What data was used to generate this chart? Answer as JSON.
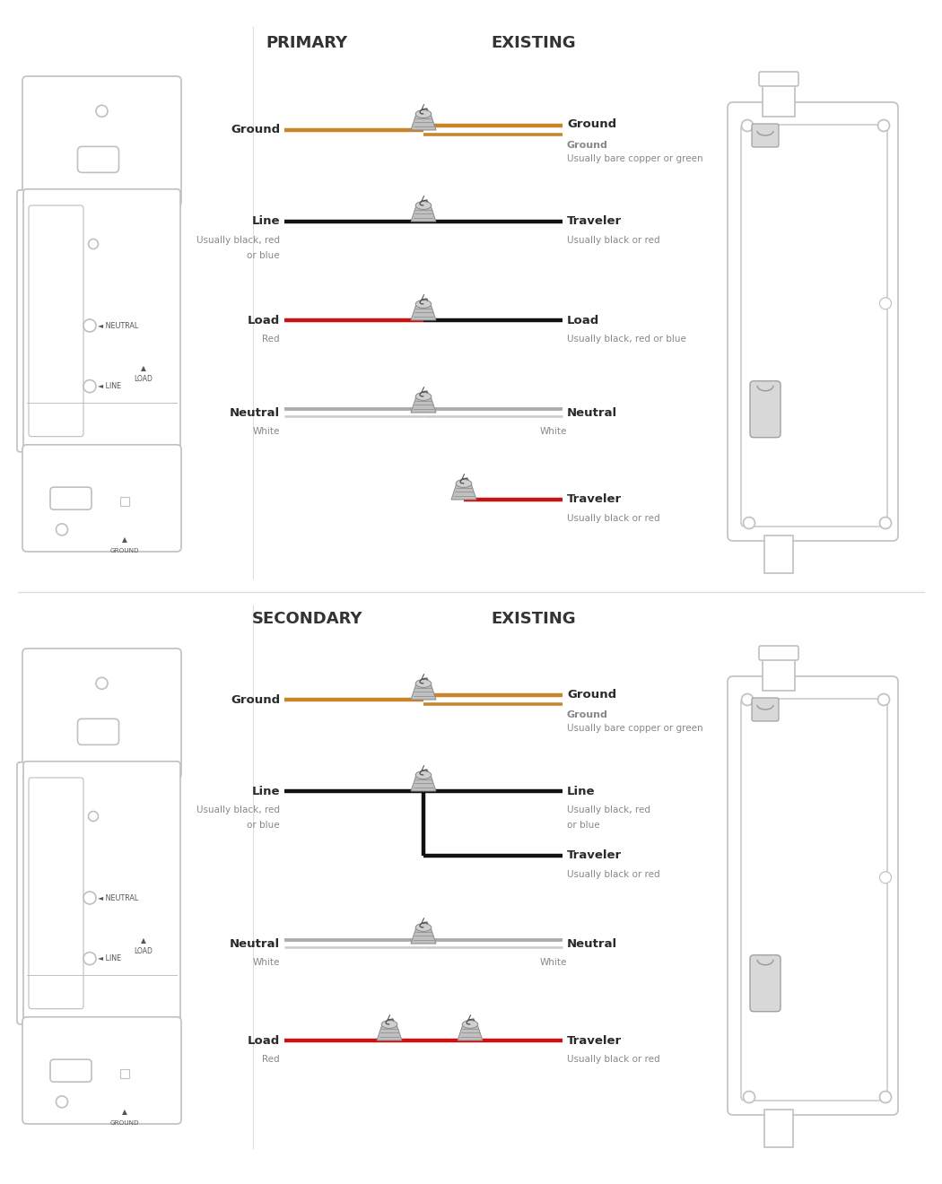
{
  "bg_color": "#ffffff",
  "sw_color": "#cccccc",
  "ground_color": "#c8852a",
  "load_color": "#cc1111",
  "black_color": "#111111",
  "label_color": "#2a2a2a",
  "sub_label_color": "#888888",
  "neutral_color_1": "#aaaaaa",
  "neutral_color_2": "#cccccc",
  "title1": "PRIMARY",
  "title2": "EXISTING",
  "title3": "SECONDARY",
  "wire_lw": 3.2,
  "nut_color_body": "#b8b8b8",
  "nut_color_top": "#d0d0d0",
  "nut_edge": "#888888"
}
